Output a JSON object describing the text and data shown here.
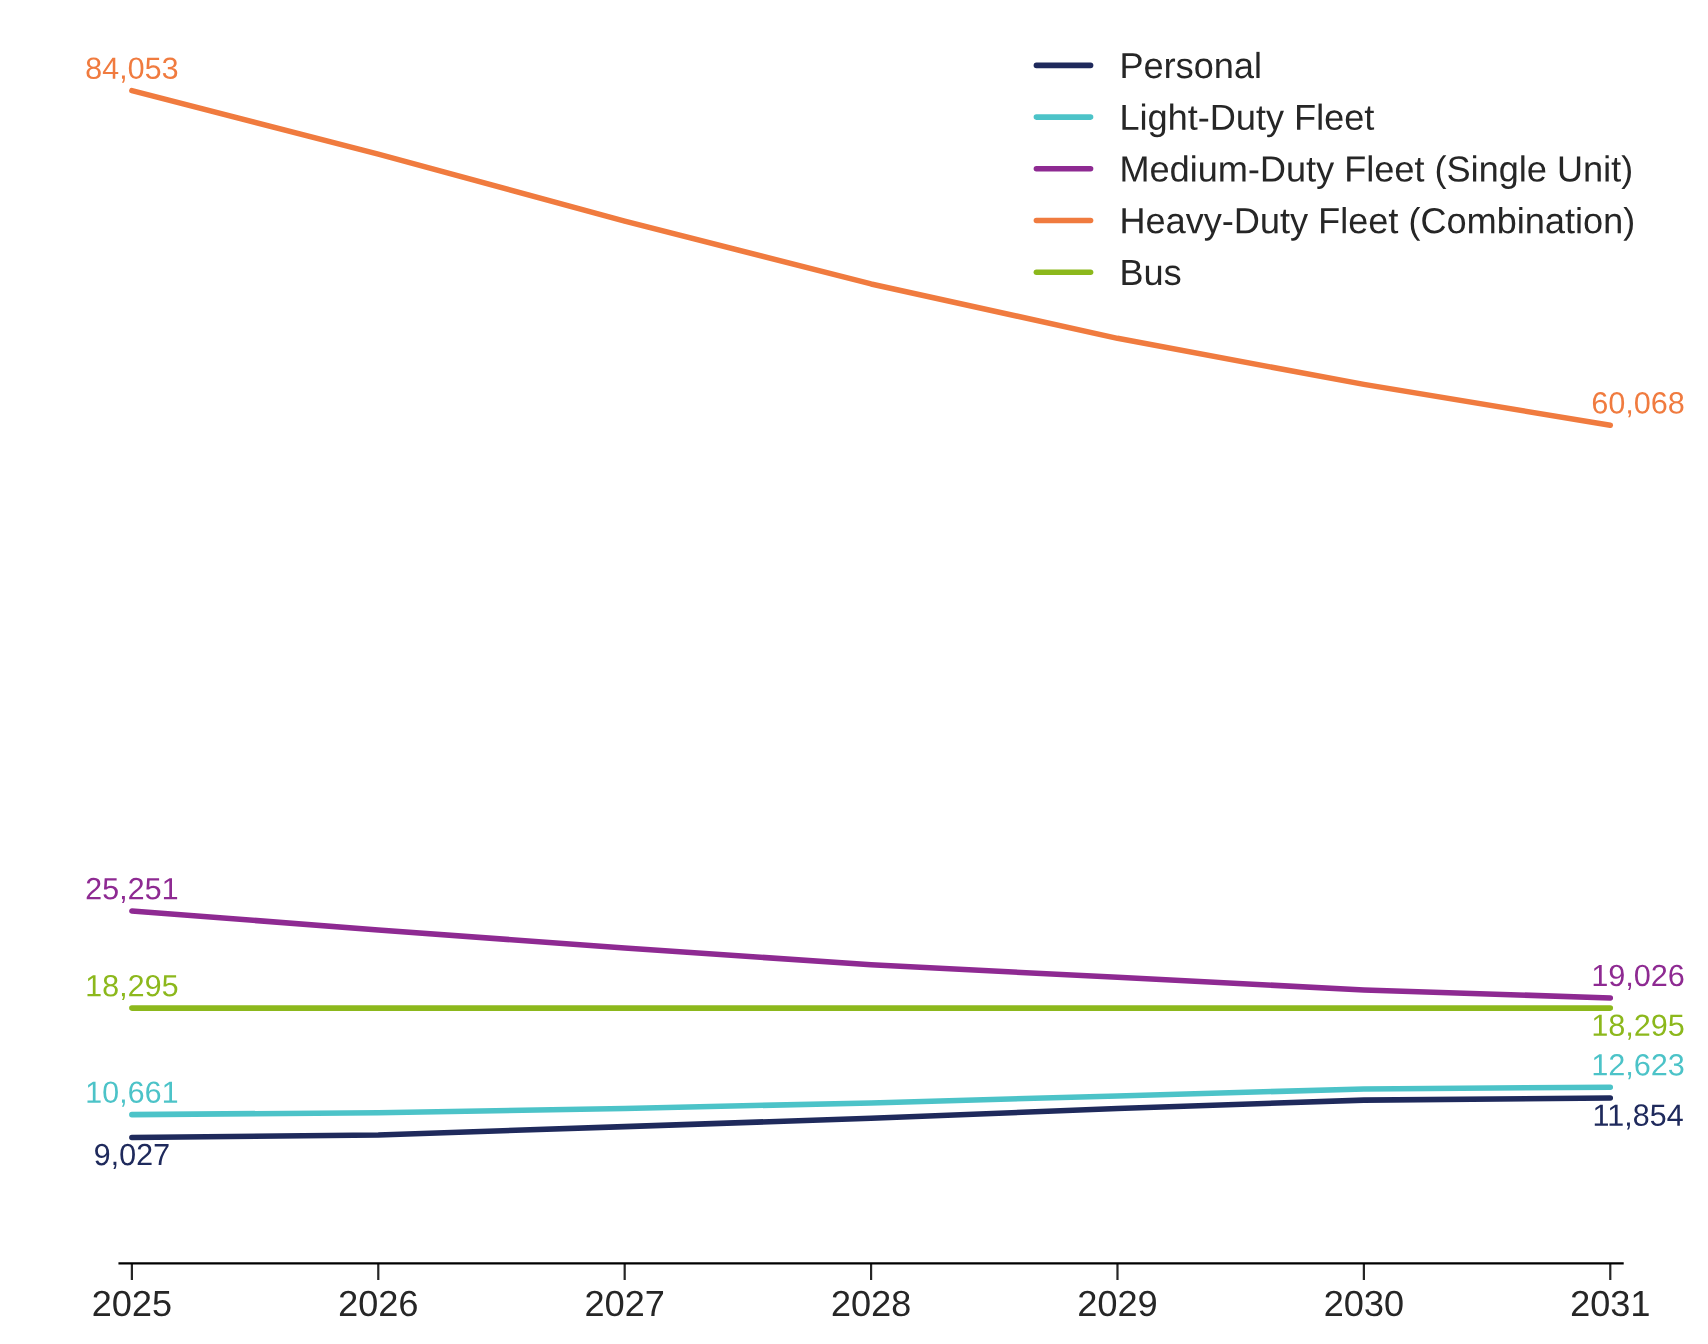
{
  "chart_data": {
    "type": "line",
    "categories": [
      "2025",
      "2026",
      "2027",
      "2028",
      "2029",
      "2030",
      "2031"
    ],
    "legend": "top right",
    "grid": false,
    "series": [
      {
        "name": "Personal",
        "color": "#1f2a5c",
        "values": [
          9027,
          9200,
          9800,
          10400,
          11100,
          11700,
          11854
        ],
        "value_labels": [
          "9,027",
          null,
          null,
          null,
          null,
          null,
          "11,854"
        ]
      },
      {
        "name": "Light-Duty Fleet",
        "color": "#4cc3c8",
        "values": [
          10661,
          10800,
          11100,
          11500,
          12000,
          12500,
          12623
        ],
        "value_labels": [
          "10,661",
          null,
          null,
          null,
          null,
          null,
          "12,623"
        ]
      },
      {
        "name": "Medium-Duty Fleet (Single Unit)",
        "color": "#8e2a92",
        "values": [
          25251,
          23900,
          22600,
          21400,
          20500,
          19600,
          19026
        ],
        "value_labels": [
          "25,251",
          null,
          null,
          null,
          null,
          null,
          "19,026"
        ]
      },
      {
        "name": "Heavy-Duty Fleet (Combination)",
        "color": "#f07b3f",
        "values": [
          84053,
          79500,
          74700,
          70200,
          66300,
          63000,
          60068
        ],
        "value_labels": [
          "84,053",
          null,
          null,
          null,
          null,
          null,
          "60,068"
        ]
      },
      {
        "name": "Bus",
        "color": "#8cb81c",
        "values": [
          18295,
          18295,
          18295,
          18295,
          18295,
          18295,
          18295
        ],
        "value_labels": [
          "18,295",
          null,
          null,
          null,
          null,
          null,
          "18,295"
        ]
      }
    ]
  }
}
